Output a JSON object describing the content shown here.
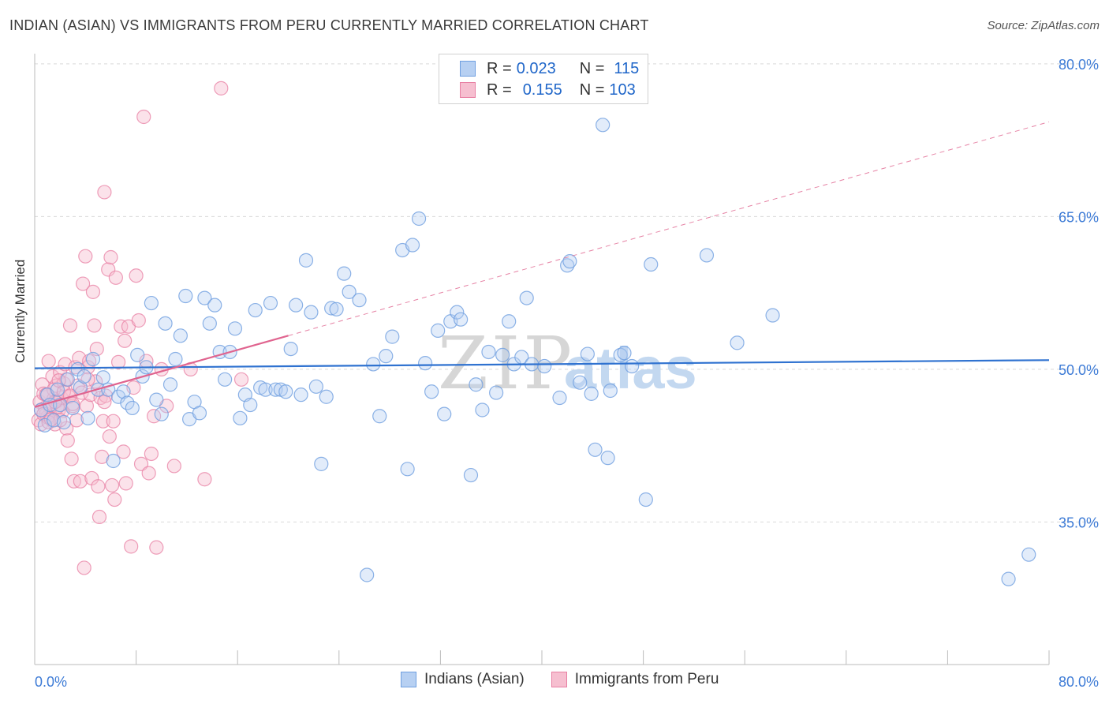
{
  "header": {
    "title": "INDIAN (ASIAN) VS IMMIGRANTS FROM PERU CURRENTLY MARRIED CORRELATION CHART",
    "source": "Source: ZipAtlas.com"
  },
  "legend": {
    "r_label": "R =",
    "n_label": "N =",
    "rows": [
      {
        "r": "0.023",
        "n": "115"
      },
      {
        "r": "0.155",
        "n": "103"
      }
    ]
  },
  "colors": {
    "blue": "#6f9fe0",
    "blue_fill": "#b7d0f2",
    "blue_line": "#2f72d0",
    "pink": "#e87fa3",
    "pink_fill": "#f6bfd0",
    "pink_line": "#e0648f",
    "grid": "#d9d9d9",
    "tick_text": "#3d7bd6"
  },
  "chart_data": {
    "type": "scatter",
    "title": "INDIAN (ASIAN) VS IMMIGRANTS FROM PERU CURRENTLY MARRIED CORRELATION CHART",
    "xlabel": "",
    "ylabel": "Currently Married",
    "xlim": [
      0,
      80
    ],
    "ylim": [
      21,
      81
    ],
    "x_tick_labels": [
      "0.0%",
      "80.0%"
    ],
    "y_ticks": [
      35,
      50,
      65,
      80
    ],
    "y_tick_labels": [
      "35.0%",
      "50.0%",
      "65.0%",
      "80.0%"
    ],
    "grid": true,
    "legend_position": "top-center",
    "watermark": "ZIPatlas",
    "series": [
      {
        "name": "Indians (Asian)",
        "color": "#6f9fe0",
        "trend": {
          "x": [
            0,
            80
          ],
          "y": [
            50.1,
            50.9
          ],
          "style": "solid"
        },
        "points": [
          [
            0.5,
            46.0
          ],
          [
            0.8,
            44.5
          ],
          [
            1.0,
            47.5
          ],
          [
            1.2,
            46.5
          ],
          [
            1.5,
            45.0
          ],
          [
            1.8,
            48.0
          ],
          [
            2.0,
            46.5
          ],
          [
            2.3,
            44.8
          ],
          [
            2.6,
            49.0
          ],
          [
            3.0,
            46.2
          ],
          [
            3.4,
            50.0
          ],
          [
            3.6,
            48.2
          ],
          [
            3.9,
            49.3
          ],
          [
            4.2,
            45.2
          ],
          [
            4.6,
            51.0
          ],
          [
            5.0,
            48.0
          ],
          [
            5.4,
            49.2
          ],
          [
            5.8,
            48.0
          ],
          [
            6.2,
            41.0
          ],
          [
            6.6,
            47.3
          ],
          [
            7.0,
            47.8
          ],
          [
            7.3,
            46.7
          ],
          [
            7.7,
            46.2
          ],
          [
            8.1,
            51.4
          ],
          [
            8.5,
            49.3
          ],
          [
            8.8,
            50.2
          ],
          [
            9.2,
            56.5
          ],
          [
            9.6,
            47.0
          ],
          [
            10.0,
            45.6
          ],
          [
            10.3,
            54.5
          ],
          [
            10.7,
            48.5
          ],
          [
            11.1,
            51.0
          ],
          [
            11.5,
            53.3
          ],
          [
            11.9,
            57.2
          ],
          [
            12.2,
            45.1
          ],
          [
            12.6,
            46.8
          ],
          [
            13.0,
            45.7
          ],
          [
            13.4,
            57.0
          ],
          [
            13.8,
            54.5
          ],
          [
            14.2,
            56.3
          ],
          [
            14.6,
            51.7
          ],
          [
            15.0,
            49.0
          ],
          [
            15.4,
            51.7
          ],
          [
            15.8,
            54.0
          ],
          [
            16.2,
            45.2
          ],
          [
            16.6,
            47.5
          ],
          [
            17.0,
            46.5
          ],
          [
            17.4,
            55.8
          ],
          [
            17.8,
            48.2
          ],
          [
            18.2,
            48.0
          ],
          [
            18.6,
            56.5
          ],
          [
            19.0,
            48.0
          ],
          [
            19.4,
            48.0
          ],
          [
            19.8,
            47.8
          ],
          [
            20.2,
            52.0
          ],
          [
            20.6,
            56.3
          ],
          [
            21.0,
            47.5
          ],
          [
            21.4,
            60.7
          ],
          [
            21.8,
            55.6
          ],
          [
            22.2,
            48.3
          ],
          [
            22.6,
            40.7
          ],
          [
            23.0,
            47.3
          ],
          [
            23.4,
            56.0
          ],
          [
            23.8,
            55.9
          ],
          [
            24.4,
            59.4
          ],
          [
            24.8,
            57.6
          ],
          [
            25.6,
            56.8
          ],
          [
            26.2,
            29.8
          ],
          [
            26.7,
            50.5
          ],
          [
            27.2,
            45.4
          ],
          [
            27.7,
            51.3
          ],
          [
            28.2,
            53.2
          ],
          [
            29.0,
            61.7
          ],
          [
            29.4,
            40.2
          ],
          [
            29.8,
            62.2
          ],
          [
            30.3,
            64.8
          ],
          [
            30.8,
            50.6
          ],
          [
            31.3,
            47.8
          ],
          [
            31.8,
            53.8
          ],
          [
            32.3,
            45.6
          ],
          [
            32.8,
            54.7
          ],
          [
            33.3,
            55.6
          ],
          [
            33.6,
            54.9
          ],
          [
            34.4,
            39.6
          ],
          [
            34.8,
            48.5
          ],
          [
            35.3,
            46.0
          ],
          [
            35.8,
            51.7
          ],
          [
            36.4,
            47.7
          ],
          [
            36.9,
            51.4
          ],
          [
            37.4,
            54.7
          ],
          [
            37.8,
            50.5
          ],
          [
            38.4,
            51.2
          ],
          [
            38.8,
            57.0
          ],
          [
            39.2,
            50.5
          ],
          [
            40.2,
            50.3
          ],
          [
            41.4,
            47.2
          ],
          [
            42.0,
            60.2
          ],
          [
            42.2,
            60.6
          ],
          [
            43.0,
            48.7
          ],
          [
            43.6,
            51.5
          ],
          [
            43.9,
            47.6
          ],
          [
            44.2,
            42.1
          ],
          [
            44.8,
            74.0
          ],
          [
            45.2,
            41.3
          ],
          [
            45.4,
            47.9
          ],
          [
            46.2,
            51.4
          ],
          [
            46.5,
            51.6
          ],
          [
            47.1,
            50.3
          ],
          [
            48.2,
            37.2
          ],
          [
            48.6,
            60.3
          ],
          [
            53.0,
            61.2
          ],
          [
            55.4,
            52.6
          ],
          [
            58.2,
            55.3
          ],
          [
            76.8,
            29.4
          ],
          [
            78.4,
            31.8
          ]
        ]
      },
      {
        "name": "Immigrants from Peru",
        "color": "#e87fa3",
        "trend": {
          "x": [
            0,
            20
          ],
          "y": [
            46.3,
            53.3
          ],
          "style": "solid",
          "extended_to": [
            80,
            74.3
          ]
        },
        "points": [
          [
            0.3,
            45.0
          ],
          [
            0.4,
            46.8
          ],
          [
            0.5,
            44.6
          ],
          [
            0.6,
            48.5
          ],
          [
            0.7,
            47.6
          ],
          [
            0.8,
            46.2
          ],
          [
            0.9,
            45.6
          ],
          [
            1.0,
            47.5
          ],
          [
            1.1,
            50.8
          ],
          [
            1.2,
            45.3
          ],
          [
            1.3,
            46.4
          ],
          [
            1.4,
            49.3
          ],
          [
            1.5,
            47.1
          ],
          [
            1.6,
            44.6
          ],
          [
            1.7,
            48.4
          ],
          [
            1.8,
            46.9
          ],
          [
            1.9,
            46.0
          ],
          [
            2.0,
            49.7
          ],
          [
            2.1,
            47.2
          ],
          [
            2.2,
            45.9
          ],
          [
            2.3,
            48.6
          ],
          [
            2.4,
            50.5
          ],
          [
            2.5,
            44.2
          ],
          [
            2.6,
            43.0
          ],
          [
            2.7,
            47.3
          ],
          [
            2.8,
            54.3
          ],
          [
            2.9,
            41.2
          ],
          [
            3.0,
            46.4
          ],
          [
            3.1,
            39.0
          ],
          [
            3.2,
            50.2
          ],
          [
            3.3,
            45.0
          ],
          [
            3.4,
            48.4
          ],
          [
            3.5,
            51.1
          ],
          [
            3.6,
            39.0
          ],
          [
            3.7,
            47.7
          ],
          [
            3.8,
            58.4
          ],
          [
            3.9,
            30.5
          ],
          [
            4.0,
            61.1
          ],
          [
            4.1,
            46.4
          ],
          [
            4.2,
            50.2
          ],
          [
            4.3,
            50.8
          ],
          [
            4.4,
            47.5
          ],
          [
            4.5,
            39.3
          ],
          [
            4.6,
            57.6
          ],
          [
            4.7,
            54.3
          ],
          [
            4.8,
            48.8
          ],
          [
            4.9,
            52.0
          ],
          [
            5.0,
            38.5
          ],
          [
            5.1,
            35.5
          ],
          [
            5.2,
            47.2
          ],
          [
            5.3,
            41.4
          ],
          [
            5.4,
            44.9
          ],
          [
            5.5,
            67.4
          ],
          [
            5.6,
            47.4
          ],
          [
            5.8,
            59.8
          ],
          [
            5.9,
            43.4
          ],
          [
            6.0,
            61.0
          ],
          [
            6.1,
            38.6
          ],
          [
            6.3,
            37.2
          ],
          [
            6.4,
            59.0
          ],
          [
            6.6,
            50.7
          ],
          [
            6.8,
            54.2
          ],
          [
            7.0,
            41.9
          ],
          [
            7.1,
            52.8
          ],
          [
            7.2,
            38.8
          ],
          [
            7.4,
            54.2
          ],
          [
            7.6,
            32.6
          ],
          [
            7.8,
            48.2
          ],
          [
            8.0,
            59.2
          ],
          [
            8.2,
            54.8
          ],
          [
            8.4,
            40.7
          ],
          [
            8.6,
            74.8
          ],
          [
            8.8,
            50.8
          ],
          [
            9.0,
            39.8
          ],
          [
            9.2,
            41.7
          ],
          [
            9.4,
            45.4
          ],
          [
            9.6,
            32.5
          ],
          [
            10.0,
            50.0
          ],
          [
            10.4,
            46.4
          ],
          [
            11.0,
            40.5
          ],
          [
            12.3,
            50.0
          ],
          [
            13.4,
            39.2
          ],
          [
            14.7,
            77.6
          ],
          [
            16.3,
            49.0
          ],
          [
            1.0,
            45.3
          ],
          [
            1.2,
            46.3
          ],
          [
            1.5,
            48.0
          ],
          [
            1.8,
            46.3
          ],
          [
            2.0,
            45.0
          ],
          [
            2.3,
            47.8
          ],
          [
            2.5,
            49.0
          ],
          [
            2.8,
            47.4
          ],
          [
            3.0,
            46.6
          ],
          [
            0.5,
            46.0
          ],
          [
            0.7,
            45.6
          ],
          [
            0.9,
            47.5
          ],
          [
            1.1,
            44.8
          ],
          [
            1.3,
            45.1
          ],
          [
            1.6,
            46.8
          ],
          [
            1.9,
            48.9
          ],
          [
            4.2,
            49.0
          ],
          [
            5.5,
            46.8
          ],
          [
            6.2,
            44.9
          ]
        ]
      }
    ]
  },
  "bottom_legend": {
    "items": [
      "Indians (Asian)",
      "Immigrants from Peru"
    ]
  }
}
